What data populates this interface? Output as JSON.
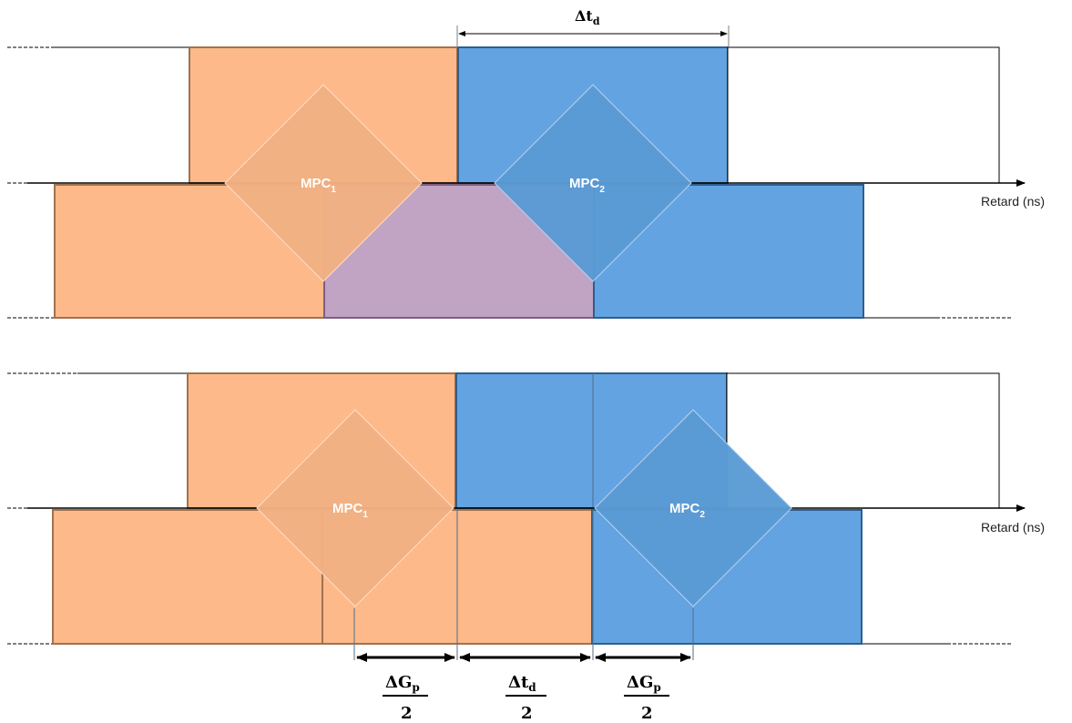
{
  "diagram": {
    "top": {
      "delta_td_label": "Δt",
      "delta_td_sub": "d",
      "mpc1_label": "MPC",
      "mpc1_sub": "1",
      "mpc2_label": "MPC",
      "mpc2_sub": "2",
      "axis_label": "Retard (ns)"
    },
    "bottom": {
      "mpc1_label": "MPC",
      "mpc1_sub": "1",
      "mpc2_label": "MPC",
      "mpc2_sub": "2",
      "axis_label": "Retard (ns)",
      "fractions": [
        {
          "num": "ΔG",
          "num_sub": "p",
          "den": "2"
        },
        {
          "num": "Δt",
          "num_sub": "d",
          "den": "2"
        },
        {
          "num": "ΔG",
          "num_sub": "p",
          "den": "2"
        }
      ]
    },
    "colors": {
      "orange": "#FDB98A",
      "blue": "#63A3E1",
      "purple": "#C1A3C4",
      "diamond_orange": "#F2B183",
      "diamond_blue": "#5B9BD5"
    }
  }
}
